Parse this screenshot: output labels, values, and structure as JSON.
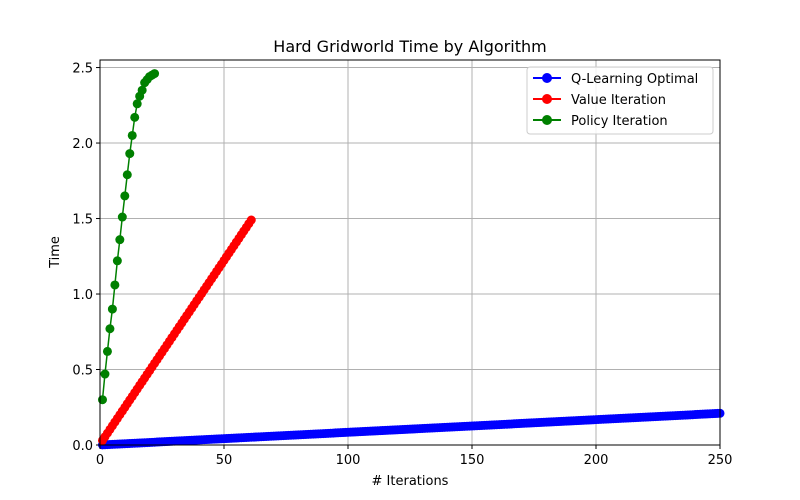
{
  "chart_data": {
    "type": "line",
    "title": "Hard Gridworld Time by Algorithm",
    "xlabel": "# Iterations",
    "ylabel": "Time",
    "xlim": [
      0,
      250
    ],
    "ylim": [
      0,
      2.55
    ],
    "xticks": [
      0,
      50,
      100,
      150,
      200,
      250
    ],
    "yticks": [
      0.0,
      0.5,
      1.0,
      1.5,
      2.0,
      2.5
    ],
    "xtick_labels": [
      "0",
      "50",
      "100",
      "150",
      "200",
      "250"
    ],
    "ytick_labels": [
      "0.0",
      "0.5",
      "1.0",
      "1.5",
      "2.0",
      "2.5"
    ],
    "grid": true,
    "legend_position": "top-right",
    "series": [
      {
        "name": "Q-Learning Optimal",
        "color": "#0000ff",
        "marker": "circle",
        "x_start": 1,
        "x_end": 250,
        "y_start": 0.001,
        "y_end": 0.21
      },
      {
        "name": "Value Iteration",
        "color": "#ff0000",
        "marker": "circle",
        "x_start": 1,
        "x_end": 61,
        "y_start": 0.03,
        "y_end": 1.49
      },
      {
        "name": "Policy Iteration",
        "color": "#008000",
        "marker": "circle",
        "x": [
          1,
          2,
          3,
          4,
          5,
          6,
          7,
          8,
          9,
          10,
          11,
          12,
          13,
          14,
          15,
          16,
          17,
          18,
          19,
          20,
          21,
          22
        ],
        "y": [
          0.3,
          0.47,
          0.62,
          0.77,
          0.9,
          1.06,
          1.22,
          1.36,
          1.51,
          1.65,
          1.79,
          1.93,
          2.05,
          2.17,
          2.26,
          2.31,
          2.35,
          2.4,
          2.42,
          2.44,
          2.45,
          2.46
        ]
      }
    ]
  }
}
